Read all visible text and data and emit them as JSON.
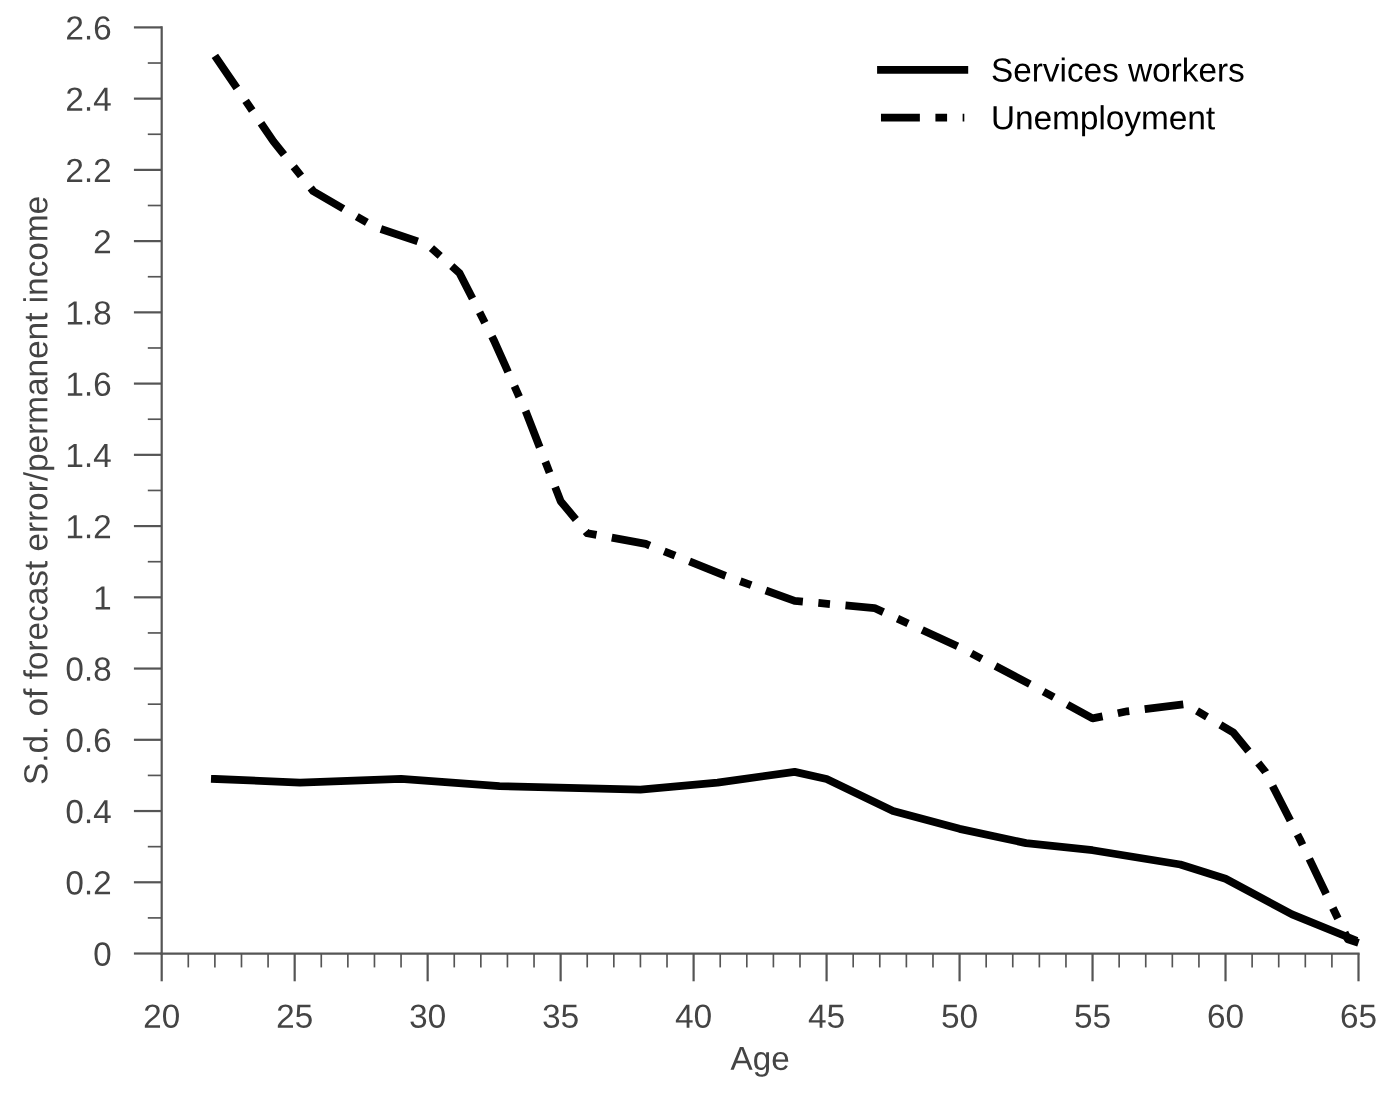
{
  "chart_data": {
    "type": "line",
    "xlabel": "Age",
    "ylabel": "S.d. of forecast error/permanent income",
    "xlim": [
      20,
      65
    ],
    "xticks": [
      20,
      25,
      30,
      35,
      40,
      45,
      50,
      55,
      60,
      65
    ],
    "ylim": [
      0,
      2.6
    ],
    "yticks": [
      0,
      0.2,
      0.4,
      0.6,
      0.8,
      1,
      1.2,
      1.4,
      1.6,
      1.8,
      2,
      2.2,
      2.4,
      2.6
    ],
    "grid": false,
    "legend": "top right",
    "marker": "none",
    "series": [
      {
        "name": "Services workers",
        "color": "#000000",
        "line_style": "solid",
        "x": [
          22,
          25.2,
          29,
          32.7,
          38,
          40.9,
          43.8,
          45,
          47.5,
          50,
          52.5,
          55,
          58.3,
          60,
          62.5,
          64.8
        ],
        "values": [
          0.49,
          0.48,
          0.49,
          0.47,
          0.46,
          0.48,
          0.51,
          0.49,
          0.4,
          0.35,
          0.31,
          0.29,
          0.25,
          0.21,
          0.11,
          0.04
        ]
      },
      {
        "name": "Unemployment",
        "color": "#000000",
        "line_style": "dashed",
        "x": [
          22,
          24.2,
          25.7,
          28,
          30,
          31.2,
          32.5,
          33.7,
          35,
          36,
          38.2,
          41.2,
          43.8,
          46.8,
          50,
          52.8,
          55,
          56.3,
          58.5,
          60.3,
          61.5,
          62.8,
          64.6,
          65
        ],
        "values": [
          2.52,
          2.28,
          2.14,
          2.04,
          1.99,
          1.91,
          1.72,
          1.52,
          1.27,
          1.18,
          1.15,
          1.06,
          0.99,
          0.97,
          0.86,
          0.75,
          0.66,
          0.68,
          0.7,
          0.62,
          0.51,
          0.32,
          0.04,
          0.03
        ]
      }
    ]
  }
}
